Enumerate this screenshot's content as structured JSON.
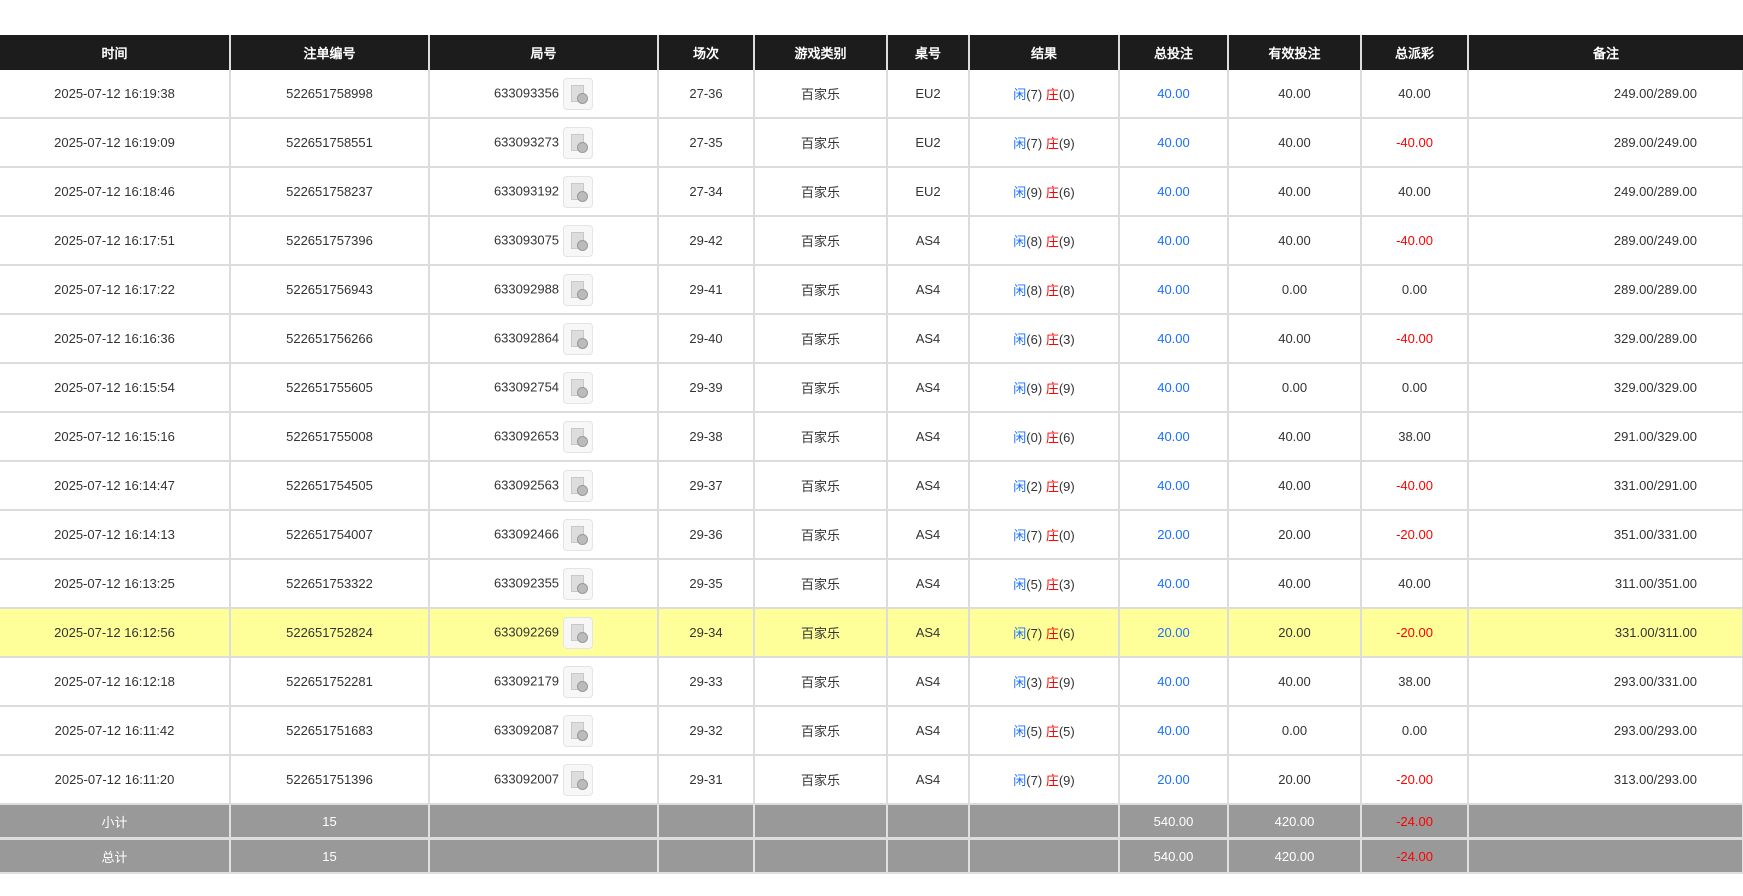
{
  "headers": [
    "时间",
    "注单编号",
    "局号",
    "场次",
    "游戏类别",
    "桌号",
    "结果",
    "总投注",
    "有效投注",
    "总派彩",
    "备注"
  ],
  "player_label": "闲",
  "banker_label": "庄",
  "highlight_row": 11,
  "colors": {
    "header_bg": "#1c1c1c",
    "highlight": "#ffff99",
    "player": "#1a6fff",
    "banker": "#ff0000",
    "summary_bg": "#999999"
  },
  "rows": [
    {
      "time": "2025-07-12 16:19:38",
      "bet_id": "522651758998",
      "round": "633093356",
      "shoe": "27-36",
      "game": "百家乐",
      "table": "EU2",
      "player": "(7)",
      "banker": "(0)",
      "total_bet": "40.00",
      "valid_bet": "40.00",
      "payout": "40.00",
      "remark": "249.00/289.00"
    },
    {
      "time": "2025-07-12 16:19:09",
      "bet_id": "522651758551",
      "round": "633093273",
      "shoe": "27-35",
      "game": "百家乐",
      "table": "EU2",
      "player": "(7)",
      "banker": "(9)",
      "total_bet": "40.00",
      "valid_bet": "40.00",
      "payout": "-40.00",
      "remark": "289.00/249.00"
    },
    {
      "time": "2025-07-12 16:18:46",
      "bet_id": "522651758237",
      "round": "633093192",
      "shoe": "27-34",
      "game": "百家乐",
      "table": "EU2",
      "player": "(9)",
      "banker": "(6)",
      "total_bet": "40.00",
      "valid_bet": "40.00",
      "payout": "40.00",
      "remark": "249.00/289.00"
    },
    {
      "time": "2025-07-12 16:17:51",
      "bet_id": "522651757396",
      "round": "633093075",
      "shoe": "29-42",
      "game": "百家乐",
      "table": "AS4",
      "player": "(8)",
      "banker": "(9)",
      "total_bet": "40.00",
      "valid_bet": "40.00",
      "payout": "-40.00",
      "remark": "289.00/249.00"
    },
    {
      "time": "2025-07-12 16:17:22",
      "bet_id": "522651756943",
      "round": "633092988",
      "shoe": "29-41",
      "game": "百家乐",
      "table": "AS4",
      "player": "(8)",
      "banker": "(8)",
      "total_bet": "40.00",
      "valid_bet": "0.00",
      "payout": "0.00",
      "remark": "289.00/289.00"
    },
    {
      "time": "2025-07-12 16:16:36",
      "bet_id": "522651756266",
      "round": "633092864",
      "shoe": "29-40",
      "game": "百家乐",
      "table": "AS4",
      "player": "(6)",
      "banker": "(3)",
      "total_bet": "40.00",
      "valid_bet": "40.00",
      "payout": "-40.00",
      "remark": "329.00/289.00"
    },
    {
      "time": "2025-07-12 16:15:54",
      "bet_id": "522651755605",
      "round": "633092754",
      "shoe": "29-39",
      "game": "百家乐",
      "table": "AS4",
      "player": "(9)",
      "banker": "(9)",
      "total_bet": "40.00",
      "valid_bet": "0.00",
      "payout": "0.00",
      "remark": "329.00/329.00"
    },
    {
      "time": "2025-07-12 16:15:16",
      "bet_id": "522651755008",
      "round": "633092653",
      "shoe": "29-38",
      "game": "百家乐",
      "table": "AS4",
      "player": "(0)",
      "banker": "(6)",
      "total_bet": "40.00",
      "valid_bet": "40.00",
      "payout": "38.00",
      "remark": "291.00/329.00"
    },
    {
      "time": "2025-07-12 16:14:47",
      "bet_id": "522651754505",
      "round": "633092563",
      "shoe": "29-37",
      "game": "百家乐",
      "table": "AS4",
      "player": "(2)",
      "banker": "(9)",
      "total_bet": "40.00",
      "valid_bet": "40.00",
      "payout": "-40.00",
      "remark": "331.00/291.00"
    },
    {
      "time": "2025-07-12 16:14:13",
      "bet_id": "522651754007",
      "round": "633092466",
      "shoe": "29-36",
      "game": "百家乐",
      "table": "AS4",
      "player": "(7)",
      "banker": "(0)",
      "total_bet": "20.00",
      "valid_bet": "20.00",
      "payout": "-20.00",
      "remark": "351.00/331.00"
    },
    {
      "time": "2025-07-12 16:13:25",
      "bet_id": "522651753322",
      "round": "633092355",
      "shoe": "29-35",
      "game": "百家乐",
      "table": "AS4",
      "player": "(5)",
      "banker": "(3)",
      "total_bet": "40.00",
      "valid_bet": "40.00",
      "payout": "40.00",
      "remark": "311.00/351.00"
    },
    {
      "time": "2025-07-12 16:12:56",
      "bet_id": "522651752824",
      "round": "633092269",
      "shoe": "29-34",
      "game": "百家乐",
      "table": "AS4",
      "player": "(7)",
      "banker": "(6)",
      "total_bet": "20.00",
      "valid_bet": "20.00",
      "payout": "-20.00",
      "remark": "331.00/311.00"
    },
    {
      "time": "2025-07-12 16:12:18",
      "bet_id": "522651752281",
      "round": "633092179",
      "shoe": "29-33",
      "game": "百家乐",
      "table": "AS4",
      "player": "(3)",
      "banker": "(9)",
      "total_bet": "40.00",
      "valid_bet": "40.00",
      "payout": "38.00",
      "remark": "293.00/331.00"
    },
    {
      "time": "2025-07-12 16:11:42",
      "bet_id": "522651751683",
      "round": "633092087",
      "shoe": "29-32",
      "game": "百家乐",
      "table": "AS4",
      "player": "(5)",
      "banker": "(5)",
      "total_bet": "40.00",
      "valid_bet": "0.00",
      "payout": "0.00",
      "remark": "293.00/293.00"
    },
    {
      "time": "2025-07-12 16:11:20",
      "bet_id": "522651751396",
      "round": "633092007",
      "shoe": "29-31",
      "game": "百家乐",
      "table": "AS4",
      "player": "(7)",
      "banker": "(9)",
      "total_bet": "20.00",
      "valid_bet": "20.00",
      "payout": "-20.00",
      "remark": "313.00/293.00"
    }
  ],
  "summary": [
    {
      "label": "小计",
      "count": "15",
      "total_bet": "540.00",
      "valid_bet": "420.00",
      "payout": "-24.00"
    },
    {
      "label": "总计",
      "count": "15",
      "total_bet": "540.00",
      "valid_bet": "420.00",
      "payout": "-24.00"
    }
  ]
}
